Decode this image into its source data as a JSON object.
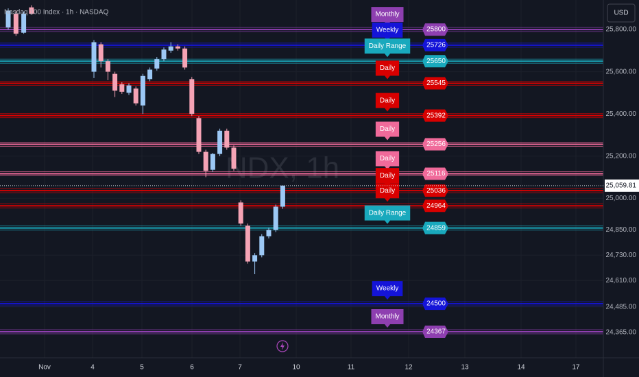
{
  "header": {
    "symbol": "Nasdaq 100 Index · 1h · NASDAQ",
    "currency": "USD",
    "watermark": "NDX, 1h"
  },
  "price_axis": {
    "range": [
      24250,
      25940
    ],
    "ticks": [
      {
        "value": 25800,
        "label": "25,800.00"
      },
      {
        "value": 25600,
        "label": "25,600.00"
      },
      {
        "value": 25400,
        "label": "25,400.00"
      },
      {
        "value": 25200,
        "label": "25,200.00"
      },
      {
        "value": 25000,
        "label": "25,000.00"
      },
      {
        "value": 24850,
        "label": "24,850.00"
      },
      {
        "value": 24730,
        "label": "24,730.00"
      },
      {
        "value": 24610,
        "label": "24,610.00"
      },
      {
        "value": 24485,
        "label": "24,485.00"
      },
      {
        "value": 24365,
        "label": "24,365.00"
      }
    ],
    "last_price": {
      "value": 25059.81,
      "label": "25,059.81"
    }
  },
  "time_axis": {
    "labels": [
      "Nov",
      "4",
      "5",
      "6",
      "7",
      "10",
      "11",
      "12",
      "13",
      "14",
      "17"
    ]
  },
  "levels": [
    {
      "price": 25800,
      "tag": "Monthly",
      "color": "#8e3fb0"
    },
    {
      "price": 25726,
      "tag": "Weekly",
      "color": "#1414d8"
    },
    {
      "price": 25650,
      "tag": "Daily Range",
      "color": "#19a9bd"
    },
    {
      "price": 25545,
      "tag": "Daily",
      "color": "#d80000"
    },
    {
      "price": 25392,
      "tag": "Daily",
      "color": "#d80000"
    },
    {
      "price": 25256,
      "tag": "Daily",
      "color": "#f06a9a"
    },
    {
      "price": 25116,
      "tag": "Daily",
      "color": "#f06a9a"
    },
    {
      "price": 25036,
      "tag": "Daily",
      "color": "#d80000"
    },
    {
      "price": 24964,
      "tag": "Daily",
      "color": "#d80000"
    },
    {
      "price": 24859,
      "tag": "Daily Range",
      "color": "#19a9bd"
    },
    {
      "price": 24500,
      "tag": "Weekly",
      "color": "#1414d8"
    },
    {
      "price": 24367,
      "tag": "Monthly",
      "color": "#8e3fb0"
    }
  ],
  "candle_colors": {
    "up": "#9cc8f5",
    "down": "#f5a3b5"
  },
  "early_candles": [
    {
      "o": 25810,
      "h": 25900,
      "l": 25800,
      "c": 25890
    },
    {
      "o": 25875,
      "h": 25890,
      "l": 25770,
      "c": 25780
    },
    {
      "o": 25785,
      "h": 25885,
      "l": 25780,
      "c": 25875
    },
    {
      "o": 25905,
      "h": 25915,
      "l": 25870,
      "c": 25875
    }
  ],
  "candles": [
    {
      "o": 25600,
      "h": 25750,
      "l": 25570,
      "c": 25740
    },
    {
      "o": 25730,
      "h": 25740,
      "l": 25620,
      "c": 25650
    },
    {
      "o": 25650,
      "h": 25660,
      "l": 25560,
      "c": 25600
    },
    {
      "o": 25590,
      "h": 25600,
      "l": 25480,
      "c": 25510
    },
    {
      "o": 25540,
      "h": 25550,
      "l": 25495,
      "c": 25505
    },
    {
      "o": 25500,
      "h": 25545,
      "l": 25490,
      "c": 25535
    },
    {
      "o": 25520,
      "h": 25530,
      "l": 25440,
      "c": 25450
    },
    {
      "o": 25440,
      "h": 25590,
      "l": 25400,
      "c": 25580
    },
    {
      "o": 25565,
      "h": 25620,
      "l": 25555,
      "c": 25610
    },
    {
      "o": 25615,
      "h": 25670,
      "l": 25605,
      "c": 25660
    },
    {
      "o": 25660,
      "h": 25715,
      "l": 25650,
      "c": 25705
    },
    {
      "o": 25700,
      "h": 25740,
      "l": 25690,
      "c": 25720
    },
    {
      "o": 25720,
      "h": 25730,
      "l": 25700,
      "c": 25710
    },
    {
      "o": 25710,
      "h": 25720,
      "l": 25610,
      "c": 25620
    },
    {
      "o": 25565,
      "h": 25575,
      "l": 25390,
      "c": 25400
    },
    {
      "o": 25380,
      "h": 25390,
      "l": 25210,
      "c": 25220
    },
    {
      "o": 25220,
      "h": 25230,
      "l": 25100,
      "c": 25130
    },
    {
      "o": 25135,
      "h": 25215,
      "l": 25125,
      "c": 25210
    },
    {
      "o": 25210,
      "h": 25330,
      "l": 25200,
      "c": 25320
    },
    {
      "o": 25320,
      "h": 25330,
      "l": 25230,
      "c": 25240
    },
    {
      "o": 25240,
      "h": 25250,
      "l": 25130,
      "c": 25140
    },
    {
      "o": 24980,
      "h": 24990,
      "l": 24870,
      "c": 24880
    },
    {
      "o": 24870,
      "h": 24880,
      "l": 24690,
      "c": 24700
    },
    {
      "o": 24700,
      "h": 24740,
      "l": 24640,
      "c": 24730
    },
    {
      "o": 24730,
      "h": 24830,
      "l": 24720,
      "c": 24820
    },
    {
      "o": 24820,
      "h": 24860,
      "l": 24810,
      "c": 24850
    },
    {
      "o": 24850,
      "h": 24970,
      "l": 24840,
      "c": 24960
    },
    {
      "o": 24960,
      "h": 25060,
      "l": 24950,
      "c": 25060
    }
  ]
}
